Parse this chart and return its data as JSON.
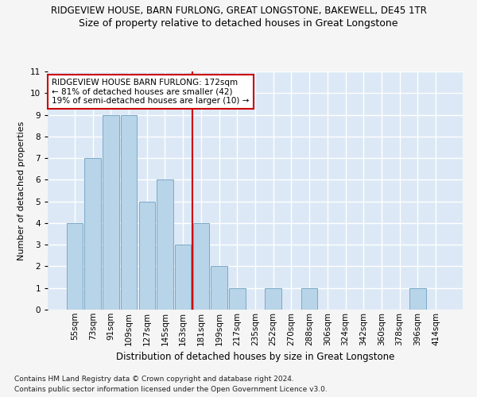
{
  "title": "RIDGEVIEW HOUSE, BARN FURLONG, GREAT LONGSTONE, BAKEWELL, DE45 1TR",
  "subtitle": "Size of property relative to detached houses in Great Longstone",
  "xlabel": "Distribution of detached houses by size in Great Longstone",
  "ylabel": "Number of detached properties",
  "categories": [
    "55sqm",
    "73sqm",
    "91sqm",
    "109sqm",
    "127sqm",
    "145sqm",
    "163sqm",
    "181sqm",
    "199sqm",
    "217sqm",
    "235sqm",
    "252sqm",
    "270sqm",
    "288sqm",
    "306sqm",
    "324sqm",
    "342sqm",
    "360sqm",
    "378sqm",
    "396sqm",
    "414sqm"
  ],
  "values": [
    4,
    7,
    9,
    9,
    5,
    6,
    3,
    4,
    2,
    1,
    0,
    1,
    0,
    1,
    0,
    0,
    0,
    0,
    0,
    1,
    0
  ],
  "bar_color": "#b8d4e8",
  "bar_edge_color": "#7aaac8",
  "vline_x": 6.5,
  "vline_color": "#cc0000",
  "annotation_text": "RIDGEVIEW HOUSE BARN FURLONG: 172sqm\n← 81% of detached houses are smaller (42)\n19% of semi-detached houses are larger (10) →",
  "annotation_box_color": "#cc0000",
  "ylim": [
    0,
    11
  ],
  "yticks": [
    0,
    1,
    2,
    3,
    4,
    5,
    6,
    7,
    8,
    9,
    10,
    11
  ],
  "footer1": "Contains HM Land Registry data © Crown copyright and database right 2024.",
  "footer2": "Contains public sector information licensed under the Open Government Licence v3.0.",
  "background_color": "#dce8f5",
  "grid_color": "#ffffff",
  "fig_background": "#f5f5f5",
  "title_fontsize": 8.5,
  "subtitle_fontsize": 9,
  "xlabel_fontsize": 8.5,
  "ylabel_fontsize": 8,
  "tick_fontsize": 7.5,
  "annotation_fontsize": 7.5,
  "footer_fontsize": 6.5
}
